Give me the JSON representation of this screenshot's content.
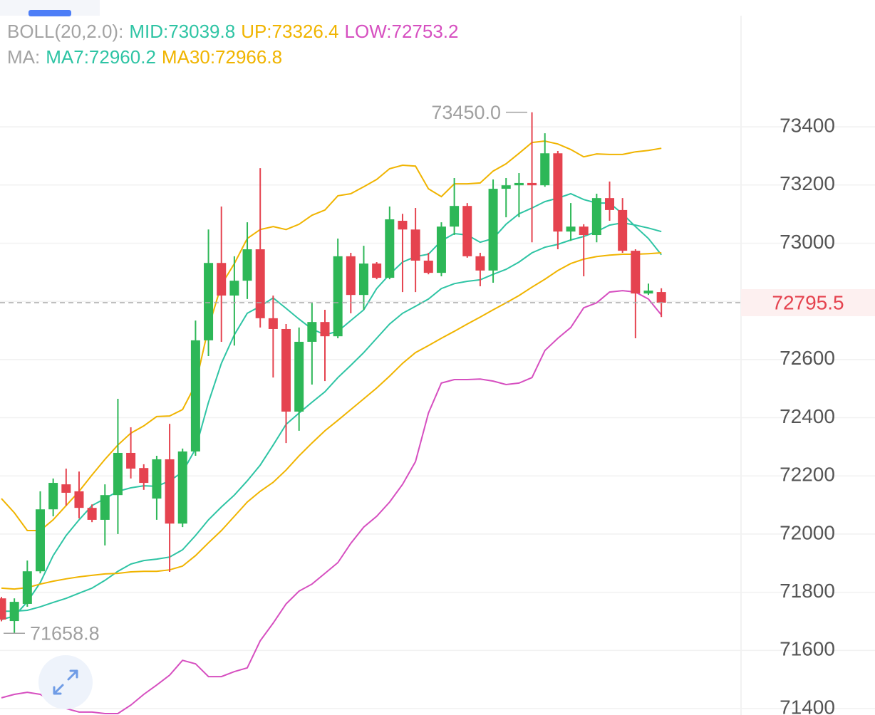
{
  "chart_data": {
    "type": "candlestick",
    "ylim": [
      71378,
      73836
    ],
    "yticks": [
      71400,
      71600,
      71800,
      72000,
      72200,
      72400,
      72600,
      72800,
      73000,
      73200,
      73400
    ],
    "grid": true,
    "up_color": "#2db757",
    "down_color": "#e5434f",
    "open": [
      71779,
      71701,
      71760,
      71872,
      72085,
      72171,
      72147,
      72090,
      72049,
      72134,
      72279,
      72227,
      72122,
      72257,
      72036,
      72284,
      72666,
      72932,
      72820,
      72871,
      72979,
      72742,
      72705,
      72421,
      72661,
      72729,
      72680,
      72955,
      72822,
      72930,
      72881,
      73077,
      73047,
      72940,
      72898,
      73057,
      73128,
      72955,
      72906,
      73187,
      73199,
      73207,
      73199,
      73309,
      73040,
      73057,
      73028,
      73155,
      73114,
      72974,
      72827,
      72832
    ],
    "high": [
      71784,
      71779,
      71909,
      72147,
      72191,
      72225,
      72215,
      72102,
      72171,
      72465,
      72367,
      72240,
      72269,
      72379,
      72294,
      72734,
      73047,
      73126,
      72955,
      73072,
      73258,
      72820,
      72722,
      72710,
      72795,
      72771,
      73016,
      72967,
      72991,
      72935,
      73126,
      73101,
      73121,
      72967,
      73072,
      73224,
      73138,
      72967,
      73219,
      73224,
      73241,
      73450,
      73378,
      73317,
      73138,
      73065,
      73170,
      73212,
      73155,
      72979,
      72861,
      72845
    ],
    "low": [
      71700,
      71658.8,
      71750,
      71865,
      72061,
      72098,
      72054,
      72041,
      71961,
      72000,
      72191,
      72152,
      72049,
      71870,
      72024,
      72269,
      72612,
      72661,
      72648,
      72808,
      72710,
      72538,
      72313,
      72355,
      72514,
      72526,
      72673,
      72759,
      72771,
      72876,
      72876,
      72832,
      72832,
      72893,
      72886,
      73028,
      72950,
      72852,
      72864,
      73089,
      73089,
      73003,
      73194,
      72979,
      73008,
      72886,
      73003,
      73077,
      72967,
      72673,
      72822,
      72746
    ],
    "close": [
      71706,
      71767,
      71872,
      72085,
      72176,
      72142,
      72090,
      72049,
      72134,
      72279,
      72225,
      72176,
      72257,
      72036,
      72284,
      72666,
      72932,
      72820,
      72871,
      72979,
      72742,
      72705,
      72421,
      72661,
      72729,
      72680,
      72955,
      72822,
      72930,
      72881,
      73082,
      73047,
      72940,
      72898,
      73057,
      73128,
      72955,
      72906,
      73187,
      73199,
      73207,
      73199,
      73309,
      73040,
      73057,
      73028,
      73155,
      73114,
      72974,
      72827,
      72837,
      72795.5
    ],
    "indicators": [
      {
        "label": "BOLL(20,2.0):",
        "color": "#a3a3a3",
        "series": [
          {
            "name": "MID:73039.8",
            "color": "#2ec4a4",
            "values": [
              71735,
              71735,
              71738,
              71750,
              71765,
              71779,
              71797,
              71814,
              71841,
              71872,
              71897,
              71909,
              71914,
              71921,
              71946,
              71995,
              72049,
              72093,
              72134,
              72183,
              72237,
              72306,
              72377,
              72416,
              72453,
              72489,
              72538,
              72580,
              72624,
              72673,
              72722,
              72759,
              72783,
              72808,
              72844,
              72861,
              72869,
              72874,
              72893,
              72910,
              72935,
              72967,
              72986,
              72996,
              73011,
              73023,
              73040,
              73062,
              73070,
              73062,
              73052,
              73039.8
            ]
          },
          {
            "name": "UP:73326.4",
            "color": "#f0b400",
            "values": [
              72122,
              72073,
              72012,
              72012,
              72049,
              72098,
              72147,
              72203,
              72257,
              72306,
              72347,
              72372,
              72404,
              72406,
              72428,
              72514,
              72710,
              72857,
              72930,
              73016,
              73047,
              73057,
              73047,
              73065,
              73096,
              73114,
              73163,
              73170,
              73194,
              73219,
              73256,
              73268,
              73265,
              73187,
              73160,
              73204,
              73204,
              73207,
              73248,
              73273,
              73309,
              73346,
              73351,
              73341,
              73322,
              73297,
              73307,
              73305,
              73305,
              73314,
              73319,
              73326.4
            ]
          },
          {
            "name": "LOW:72753.2",
            "color": "#d64fc0",
            "values": [
              71437,
              71449,
              71456,
              71449,
              71424,
              71400,
              71388,
              71388,
              71383,
              71383,
              71412,
              71449,
              71481,
              71515,
              71566,
              71554,
              71510,
              71510,
              71527,
              71540,
              71633,
              71694,
              71760,
              71804,
              71828,
              71865,
              71902,
              71968,
              72024,
              72061,
              72110,
              72171,
              72249,
              72416,
              72519,
              72531,
              72531,
              72533,
              72526,
              72514,
              72519,
              72538,
              72631,
              72673,
              72710,
              72778,
              72795,
              72832,
              72837,
              72832,
              72808,
              72753.2
            ]
          }
        ]
      },
      {
        "label": "MA:",
        "color": "#a3a3a3",
        "series": [
          {
            "name": "MA7:72960.2",
            "color": "#2ec4a4",
            "values": [
              71706,
              71718,
              71767,
              71833,
              71926,
              71995,
              72049,
              72098,
              72122,
              72147,
              72159,
              72166,
              72164,
              72183,
              72213,
              72293,
              72453,
              72587,
              72685,
              72759,
              72783,
              72812,
              72776,
              72739,
              72705,
              72685,
              72697,
              72734,
              72771,
              72844,
              72893,
              72935,
              72954,
              72962,
              73008,
              73033,
              73028,
              73003,
              73016,
              73065,
              73101,
              73121,
              73143,
              73155,
              73170,
              73150,
              73138,
              73138,
              73101,
              73057,
              73016,
              72960.2
            ]
          },
          {
            "name": "MA30:72966.8",
            "color": "#f0b400",
            "values": [
              71814,
              71811,
              71816,
              71828,
              71838,
              71846,
              71853,
              71858,
              71863,
              71865,
              71870,
              71872,
              71872,
              71877,
              71890,
              71926,
              71970,
              72012,
              72061,
              72110,
              72147,
              72178,
              72220,
              72269,
              72313,
              72355,
              72391,
              72428,
              72465,
              72502,
              72543,
              72587,
              72624,
              72648,
              72673,
              72697,
              72722,
              72746,
              72771,
              72795,
              72820,
              72849,
              72876,
              72906,
              72930,
              72945,
              72954,
              72959,
              72962,
              72962,
              72964,
              72966.8
            ]
          }
        ]
      }
    ],
    "max_label": {
      "value": 73450,
      "label": "73450.0"
    },
    "min_label": 71658.8,
    "marker_color": "#a0a0a0",
    "last_price": 72795.5,
    "last_price_color": "#e5434f"
  }
}
